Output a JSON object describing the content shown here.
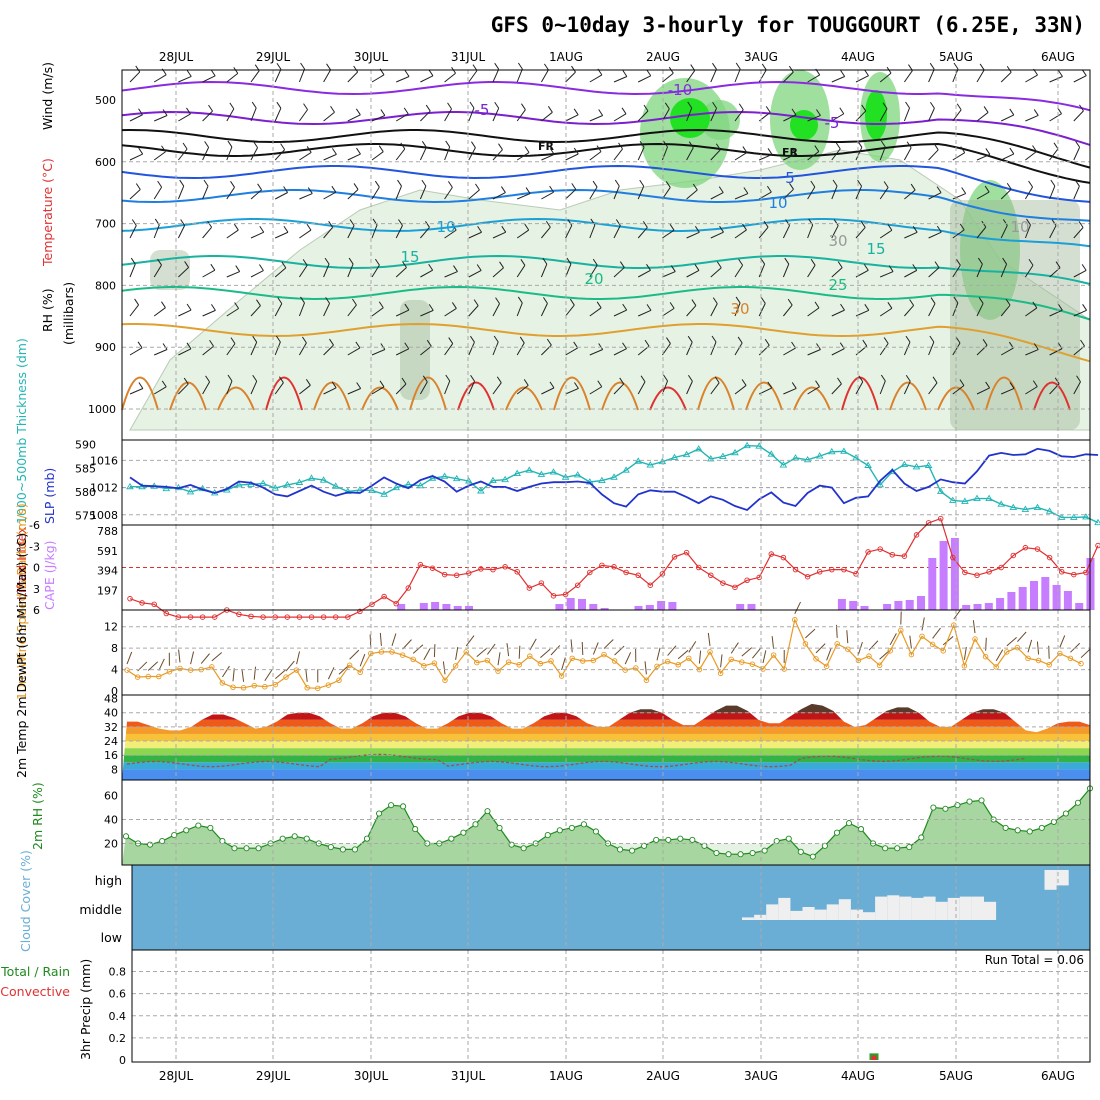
{
  "title": "GFS 0~10day 3-hourly for TOUGGOURT (6.25E, 33N)",
  "colors": {
    "cloud_bg": "#6aaed6",
    "cloud_fill": "#efefef",
    "cape_bar": "#c77dff",
    "lifted_index": "#e03030",
    "slp": "#2233cc",
    "thickness": "#22b5b5",
    "wind_speed": "#e89a22",
    "rh_line": "#1f8a1f",
    "temp_top": "#5a3a2a"
  },
  "chart_data": {
    "type": "line",
    "date_labels": [
      "28JUL",
      "29JUL",
      "30JUL",
      "31JUL",
      "1AUG",
      "2AUG",
      "3AUG",
      "4AUG",
      "5AUG",
      "6AUG"
    ],
    "run_total_label": "Run Total = 0.06",
    "panels": {
      "upper_air": {
        "ylabel": "(millibars)",
        "label_wind": "Wind (m/s)",
        "label_temp": "Temperature (°C)",
        "label_rh": "RH (%)",
        "yticks": [
          "500",
          "600",
          "700",
          "800",
          "900",
          "1000"
        ],
        "isotherm_labels": [
          "-10",
          "-5",
          "-5",
          "FR",
          "FR",
          "5",
          "10",
          "10",
          "15",
          "15",
          "20",
          "25",
          "30",
          "30",
          "10"
        ]
      },
      "pressure": {
        "label_thickness": "1000~500mb Thickness (dm)",
        "label_slp": "SLP (mb)",
        "thickness_ticks": [
          "590",
          "585",
          "580",
          "575"
        ],
        "slp_ticks": [
          "1016",
          "1012",
          "1008"
        ],
        "slp": [
          1013.5,
          1012.3,
          1012.2,
          1012.1,
          1011.9,
          1012.4,
          1011.7,
          1011.2,
          1011.8,
          1012.9,
          1012.7,
          1012.0,
          1011.0,
          1010.7,
          1011.5,
          1012.3,
          1011.4,
          1010.8,
          1011.3,
          1011.2,
          1012.3,
          1013.5,
          1012.6,
          1011.9,
          1013.1,
          1013.7,
          1012.9,
          1011.4,
          1012.3,
          1012.9,
          1012.1,
          1012.1,
          1011.5,
          1012.1,
          1012.6,
          1012.8,
          1012.8,
          1012.9,
          1012.7,
          1011.0,
          1009.7,
          1009.2,
          1011.0,
          1011.6,
          1011.4,
          1011.4,
          1010.6,
          1009.7,
          1010.7,
          1010.2,
          1009.3,
          1008.7,
          1010.3,
          1011.3,
          1009.8,
          1009.3,
          1011.2,
          1012.3,
          1012.0,
          1009.7,
          1010.5,
          1010.7,
          1013.0,
          1014.6,
          1012.6,
          1011.5,
          1012.1,
          1013.2,
          1012.8,
          1012.6,
          1014.4,
          1016.7,
          1017.1,
          1016.8,
          1016.9,
          1017.7,
          1017.4,
          1016.6,
          1016.5,
          1016.9,
          1016.8
        ],
        "thickness": [
          581.1,
          581.1,
          581.2,
          580.7,
          580.9,
          580.0,
          580.7,
          579.8,
          580.4,
          581.5,
          581.6,
          581.8,
          580.8,
          581.5,
          582.0,
          582.9,
          582.5,
          581.2,
          580.1,
          580.4,
          580.3,
          579.5,
          580.9,
          581.6,
          581.3,
          582.9,
          583.3,
          582.8,
          582.3,
          580.2,
          582.4,
          582.6,
          583.9,
          584.6,
          583.7,
          584.2,
          583.1,
          583.6,
          582.1,
          582.4,
          583.1,
          584.6,
          586.5,
          585.7,
          586.4,
          587.3,
          587.9,
          589.1,
          587.0,
          587.5,
          588.3,
          589.8,
          589.7,
          588.0,
          585.7,
          587.2,
          586.8,
          587.6,
          588.5,
          588.6,
          587.2,
          585.6,
          581.5,
          584.3,
          585.8,
          585.3,
          585.6,
          580.1,
          578.2,
          578.0,
          578.6,
          578.6,
          577.4,
          576.7,
          576.3,
          576.7,
          575.9,
          574.6,
          574.6,
          574.7,
          573.5
        ]
      },
      "instability": {
        "label_li": "Lifted Index",
        "label_cape": "CAPE (J/kg)",
        "li_ticks": [
          "-6",
          "-3",
          "0",
          "3",
          "6"
        ],
        "cape_ticks": [
          "788",
          "591",
          "394",
          "197"
        ],
        "lifted_index": [
          4.4,
          5.0,
          5.2,
          6.5,
          7.0,
          7.0,
          7.0,
          7.0,
          6.0,
          6.6,
          6.9,
          7.0,
          7.0,
          7.0,
          7.0,
          7.0,
          7.0,
          7.0,
          7.0,
          6.2,
          5.2,
          4.1,
          5.1,
          2.9,
          -0.4,
          0.1,
          1.0,
          1.1,
          0.8,
          0.2,
          0.3,
          -0.1,
          0.6,
          2.9,
          2.2,
          4.0,
          3.8,
          2.5,
          0.7,
          -0.3,
          -0.1,
          0.7,
          1.1,
          2.5,
          0.9,
          -1.5,
          -2.1,
          0.0,
          1.1,
          2.2,
          2.8,
          1.8,
          1.4,
          -1.9,
          -1.4,
          0.3,
          1.3,
          0.6,
          0.3,
          0.3,
          0.9,
          -2.2,
          -2.6,
          -1.8,
          -1.6,
          -4.6,
          -6.3,
          -6.9,
          -1.4,
          0.7,
          1.1,
          0.6,
          0.0,
          -1.7,
          -2.8,
          -2.6,
          -1.4,
          0.6,
          1.0,
          0.7,
          -3.1
        ],
        "cape": [
          0,
          0,
          0,
          0,
          0,
          0,
          0,
          0,
          0,
          0,
          0,
          0,
          0,
          0,
          0,
          0,
          0,
          0,
          0,
          0,
          0,
          0,
          0,
          0,
          60,
          0,
          70,
          80,
          60,
          40,
          40,
          0,
          0,
          0,
          0,
          0,
          0,
          0,
          60,
          120,
          110,
          60,
          20,
          0,
          0,
          40,
          50,
          90,
          80,
          0,
          0,
          0,
          0,
          0,
          60,
          60,
          0,
          0,
          0,
          0,
          0,
          0,
          0,
          110,
          90,
          40,
          0,
          60,
          90,
          100,
          140,
          520,
          690,
          720,
          50,
          60,
          70,
          120,
          180,
          230,
          290,
          330,
          250,
          190,
          70,
          520
        ]
      },
      "wind10m": {
        "label": "10m Wind Speed & Barbs (m/s)",
        "yticks": [
          "12",
          "8",
          "4",
          "0"
        ],
        "speed": [
          3.9,
          2.6,
          2.7,
          2.7,
          3.6,
          4.2,
          3.9,
          4.0,
          4.5,
          1.5,
          0.7,
          0.6,
          1.0,
          0.8,
          1.2,
          2.6,
          3.9,
          0.6,
          0.5,
          1.1,
          2.0,
          4.8,
          3.5,
          7.0,
          7.3,
          7.3,
          6.7,
          5.9,
          4.7,
          5.2,
          2.0,
          4.7,
          7.3,
          5.3,
          5.7,
          3.7,
          5.4,
          4.9,
          6.5,
          5.1,
          5.6,
          2.8,
          6.1,
          5.6,
          5.7,
          6.8,
          5.6,
          3.9,
          4.3,
          2.0,
          4.6,
          5.5,
          4.9,
          6.1,
          4.0,
          7.3,
          3.3,
          5.9,
          5.4,
          5.0,
          4.1,
          6.7,
          4.1,
          13.3,
          8.8,
          6.0,
          4.6,
          8.8,
          7.8,
          5.7,
          6.5,
          4.8,
          7.5,
          11.3,
          6.8,
          10.2,
          8.7,
          7.5,
          12.3,
          4.7,
          9.7,
          6.4,
          4.5,
          7.3,
          8.1,
          6.1,
          5.7,
          4.9,
          7.0,
          6.1,
          5.1
        ]
      },
      "temp2m": {
        "label": "2m Temp 2m DewPt (6hr Min/Max) (°C)",
        "yticks": [
          "48",
          "40",
          "32",
          "24",
          "16",
          "8"
        ],
        "temp": [
          35,
          35,
          33,
          31,
          30,
          30,
          32,
          36,
          39,
          39,
          37,
          34,
          31,
          32,
          35,
          39,
          40,
          40,
          38,
          34,
          31,
          31,
          34,
          38,
          40,
          40,
          38,
          34,
          31,
          31,
          34,
          38,
          40,
          40,
          38,
          34,
          31,
          31,
          34,
          38,
          40,
          40,
          38,
          34,
          32,
          32,
          36,
          40,
          42,
          42,
          40,
          36,
          33,
          33,
          37,
          41,
          44,
          44,
          41,
          36,
          34,
          34,
          38,
          42,
          45,
          44,
          41,
          35,
          32,
          33,
          37,
          41,
          43,
          43,
          40,
          35,
          32,
          32,
          36,
          40,
          42,
          42,
          40,
          35,
          30,
          29,
          31,
          34,
          35,
          35,
          33
        ]
      },
      "rh2m": {
        "label": "2m RH (%)",
        "yticks": [
          "60",
          "40",
          "20"
        ],
        "rh": [
          26,
          20,
          19,
          22,
          27,
          31,
          35,
          33,
          22,
          16,
          16,
          16,
          20,
          24,
          26,
          24,
          20,
          17,
          15,
          15,
          24,
          45,
          52,
          51,
          32,
          20,
          20,
          24,
          29,
          36,
          47,
          33,
          19,
          16,
          20,
          27,
          31,
          33,
          36,
          30,
          20,
          15,
          14,
          18,
          23,
          23,
          24,
          23,
          18,
          12,
          11,
          11,
          12,
          14,
          22,
          24,
          13,
          9,
          18,
          29,
          37,
          32,
          20,
          16,
          16,
          17,
          25,
          50,
          49,
          52,
          55,
          56,
          40,
          33,
          31,
          30,
          33,
          38,
          45,
          54,
          66
        ]
      },
      "cloud": {
        "label": "Cloud Cover (%)",
        "levels": [
          "high",
          "middle",
          "low"
        ],
        "high": [
          0,
          0,
          0,
          0,
          0,
          0,
          0,
          0,
          0,
          0,
          0,
          0,
          0,
          0,
          0,
          0,
          0,
          0,
          0,
          0,
          0,
          0,
          0,
          0,
          0,
          0,
          0,
          0,
          0,
          0,
          0,
          0,
          0,
          0,
          0,
          0,
          0,
          0,
          0,
          0,
          0,
          0,
          0,
          0,
          0,
          0,
          0,
          0,
          0,
          0,
          0,
          0,
          0,
          0,
          0,
          0,
          0,
          0,
          0,
          0,
          0,
          0,
          0,
          0,
          0,
          0,
          0,
          0,
          0,
          0,
          0,
          0,
          0,
          0,
          0,
          90,
          70,
          0,
          0,
          0,
          0,
          0,
          0,
          0,
          0,
          0,
          0,
          0,
          0,
          80,
          60,
          90,
          80,
          95,
          85
        ],
        "middle": [
          0,
          0,
          0,
          0,
          0,
          0,
          0,
          0,
          0,
          0,
          0,
          0,
          0,
          0,
          0,
          0,
          0,
          0,
          0,
          0,
          0,
          0,
          0,
          0,
          0,
          0,
          0,
          0,
          0,
          0,
          0,
          0,
          0,
          0,
          0,
          0,
          0,
          0,
          0,
          0,
          0,
          0,
          0,
          0,
          0,
          0,
          0,
          0,
          0,
          0,
          10,
          20,
          60,
          85,
          35,
          50,
          40,
          60,
          80,
          40,
          30,
          90,
          95,
          90,
          85,
          90,
          70,
          85,
          90,
          90,
          70,
          0,
          0,
          0,
          0,
          0,
          0,
          0,
          0,
          0,
          0,
          0,
          0,
          0,
          0,
          0,
          0,
          0,
          0,
          0,
          0
        ]
      },
      "precip": {
        "label_total": "Total / Rain",
        "label_conv": "Convective",
        "label_axis": "3hr Precip (mm)",
        "yticks": [
          "0.8",
          "0.6",
          "0.4",
          "0.2",
          "0"
        ],
        "total": [
          0,
          0,
          0,
          0,
          0,
          0,
          0,
          0,
          0,
          0,
          0,
          0,
          0,
          0,
          0,
          0,
          0,
          0,
          0,
          0,
          0,
          0,
          0,
          0,
          0,
          0,
          0,
          0,
          0,
          0,
          0,
          0,
          0,
          0,
          0,
          0,
          0,
          0,
          0,
          0,
          0,
          0,
          0,
          0,
          0,
          0,
          0,
          0,
          0,
          0,
          0,
          0,
          0,
          0,
          0,
          0,
          0,
          0,
          0,
          0,
          0,
          0,
          0,
          0,
          0,
          0,
          0,
          0,
          0,
          0,
          0,
          0.06,
          0,
          0,
          0,
          0,
          0,
          0,
          0,
          0,
          0
        ],
        "conv": [
          0,
          0,
          0,
          0,
          0,
          0,
          0,
          0,
          0,
          0,
          0,
          0,
          0,
          0,
          0,
          0,
          0,
          0,
          0,
          0,
          0,
          0,
          0,
          0,
          0,
          0,
          0,
          0,
          0,
          0,
          0,
          0,
          0,
          0,
          0,
          0,
          0,
          0,
          0,
          0,
          0,
          0,
          0,
          0,
          0,
          0,
          0,
          0,
          0,
          0,
          0,
          0,
          0,
          0,
          0,
          0,
          0,
          0,
          0,
          0,
          0,
          0,
          0,
          0,
          0,
          0,
          0,
          0,
          0,
          0,
          0,
          0.04,
          0,
          0,
          0,
          0,
          0,
          0,
          0,
          0,
          0
        ]
      }
    }
  }
}
